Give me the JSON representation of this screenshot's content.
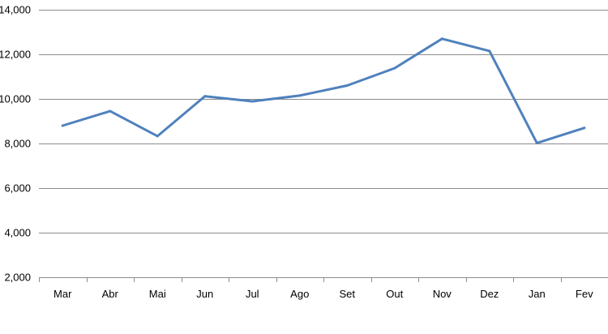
{
  "chart_data": {
    "type": "line",
    "title": "",
    "xlabel": "",
    "ylabel": "",
    "categories": [
      "Mar",
      "Abr",
      "Mai",
      "Jun",
      "Jul",
      "Ago",
      "Set",
      "Out",
      "Nov",
      "Dez",
      "Jan",
      "Fev"
    ],
    "series": [
      {
        "values": [
          8800,
          9450,
          8330,
          10120,
          9890,
          10150,
          10600,
          11380,
          12700,
          12150,
          8020,
          8700
        ],
        "color": "#4f81bd"
      }
    ],
    "ylim": [
      2000,
      14000
    ],
    "yticks": [
      2000,
      4000,
      6000,
      8000,
      10000,
      12000,
      14000
    ],
    "ytick_labels": [
      "2,000",
      "4,000",
      "6,000",
      "8,000",
      "10,000",
      "12,000",
      "14,000"
    ],
    "grid": true,
    "legend": "none"
  }
}
